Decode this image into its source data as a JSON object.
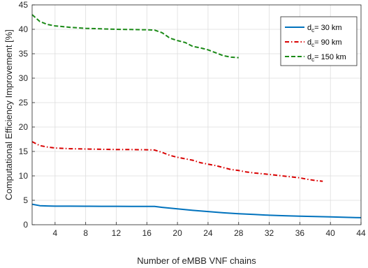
{
  "chart_data": {
    "type": "line",
    "xlabel": "Number of eMBB VNF chains",
    "ylabel": "Computational Efficiency Improvement [%]",
    "xlim": [
      1,
      44
    ],
    "ylim": [
      0,
      45
    ],
    "xticks": [
      4,
      8,
      12,
      16,
      20,
      24,
      28,
      32,
      36,
      40,
      44
    ],
    "yticks": [
      0,
      5,
      10,
      15,
      20,
      25,
      30,
      35,
      40,
      45
    ],
    "grid": true,
    "legend_position": "top-right",
    "series": [
      {
        "name": "d_c= 30 km",
        "label_parts": [
          "d",
          "c",
          "= 30 km"
        ],
        "color": "#0072BD",
        "style": "solid",
        "points": [
          [
            1,
            4.2
          ],
          [
            2,
            3.9
          ],
          [
            3,
            3.85
          ],
          [
            4,
            3.8
          ],
          [
            6,
            3.8
          ],
          [
            8,
            3.78
          ],
          [
            10,
            3.77
          ],
          [
            12,
            3.77
          ],
          [
            14,
            3.76
          ],
          [
            16,
            3.76
          ],
          [
            17,
            3.75
          ],
          [
            18,
            3.55
          ],
          [
            20,
            3.25
          ],
          [
            22,
            2.95
          ],
          [
            24,
            2.7
          ],
          [
            26,
            2.45
          ],
          [
            28,
            2.25
          ],
          [
            30,
            2.1
          ],
          [
            32,
            1.95
          ],
          [
            34,
            1.85
          ],
          [
            36,
            1.75
          ],
          [
            38,
            1.68
          ],
          [
            40,
            1.6
          ],
          [
            42,
            1.52
          ],
          [
            44,
            1.45
          ]
        ]
      },
      {
        "name": "d_c= 90 km",
        "label_parts": [
          "d",
          "c",
          "= 90 km"
        ],
        "color": "#D90000",
        "style": "dashdot",
        "points": [
          [
            1,
            17.0
          ],
          [
            2,
            16.2
          ],
          [
            3,
            15.9
          ],
          [
            4,
            15.7
          ],
          [
            6,
            15.55
          ],
          [
            8,
            15.5
          ],
          [
            10,
            15.45
          ],
          [
            12,
            15.4
          ],
          [
            14,
            15.38
          ],
          [
            16,
            15.35
          ],
          [
            17,
            15.3
          ],
          [
            18,
            14.8
          ],
          [
            19,
            14.2
          ],
          [
            20,
            13.8
          ],
          [
            22,
            13.2
          ],
          [
            23,
            12.7
          ],
          [
            24,
            12.4
          ],
          [
            25,
            12.1
          ],
          [
            26,
            11.7
          ],
          [
            27,
            11.3
          ],
          [
            28,
            11.1
          ],
          [
            29,
            10.8
          ],
          [
            30,
            10.6
          ],
          [
            32,
            10.3
          ],
          [
            34,
            9.95
          ],
          [
            36,
            9.6
          ],
          [
            37,
            9.3
          ],
          [
            38,
            9.05
          ],
          [
            39,
            8.9
          ]
        ]
      },
      {
        "name": "d_c= 150 km",
        "label_parts": [
          "d",
          "c",
          "= 150 km"
        ],
        "color": "#1B8A17",
        "style": "dashed",
        "points": [
          [
            1,
            43.0
          ],
          [
            2,
            41.6
          ],
          [
            3,
            41.0
          ],
          [
            4,
            40.7
          ],
          [
            6,
            40.4
          ],
          [
            8,
            40.2
          ],
          [
            10,
            40.1
          ],
          [
            12,
            40.0
          ],
          [
            14,
            39.95
          ],
          [
            16,
            39.9
          ],
          [
            17,
            39.85
          ],
          [
            18,
            39.3
          ],
          [
            19,
            38.2
          ],
          [
            20,
            37.7
          ],
          [
            21,
            37.3
          ],
          [
            22,
            36.5
          ],
          [
            23,
            36.2
          ],
          [
            24,
            35.8
          ],
          [
            25,
            35.2
          ],
          [
            26,
            34.6
          ],
          [
            27,
            34.3
          ],
          [
            28,
            34.2
          ]
        ]
      }
    ]
  }
}
